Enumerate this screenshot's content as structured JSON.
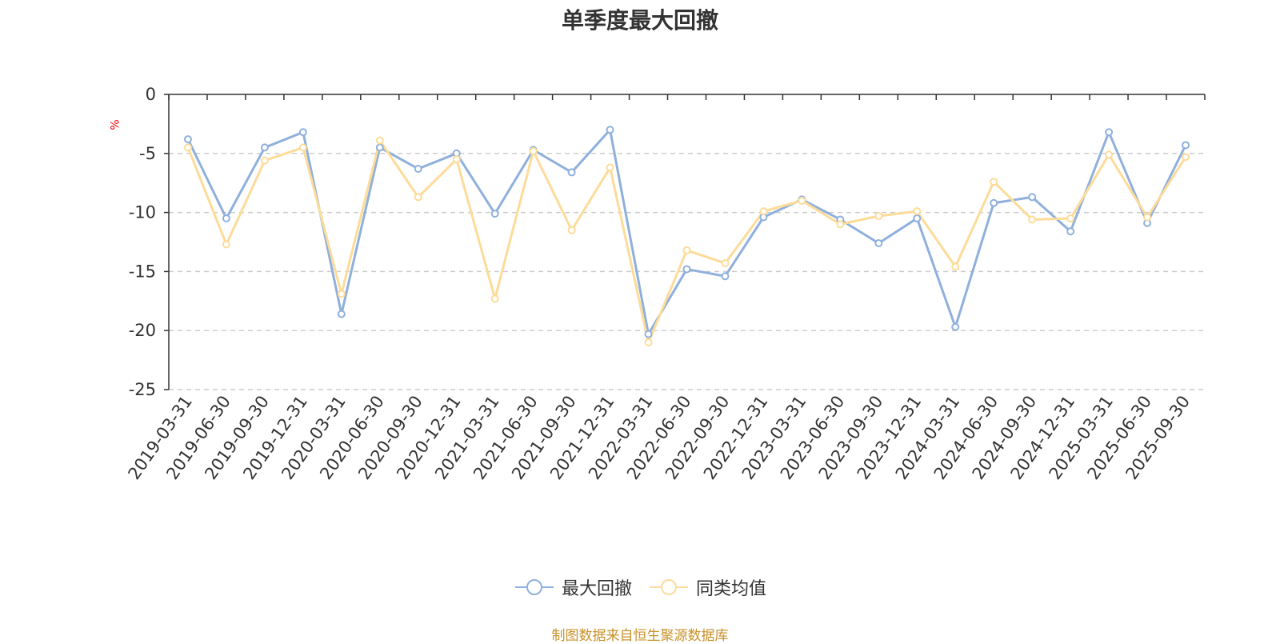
{
  "chart_data": {
    "type": "line",
    "title": "单季度最大回撤",
    "ylabel": "%",
    "ylim": [
      -25,
      0
    ],
    "yticks": [
      0,
      -5,
      -10,
      -15,
      -20,
      -25
    ],
    "grid": true,
    "legend_position": "bottom",
    "categories": [
      "2019-03-31",
      "2019-06-30",
      "2019-09-30",
      "2019-12-31",
      "2020-03-31",
      "2020-06-30",
      "2020-09-30",
      "2020-12-31",
      "2021-03-31",
      "2021-06-30",
      "2021-09-30",
      "2021-12-31",
      "2022-03-31",
      "2022-06-30",
      "2022-09-30",
      "2022-12-31",
      "2023-03-31",
      "2023-06-30",
      "2023-09-30",
      "2023-12-31",
      "2024-03-31",
      "2024-06-30",
      "2024-09-30",
      "2024-12-31",
      "2025-03-31",
      "2025-06-30",
      "2025-09-30"
    ],
    "series": [
      {
        "name": "最大回撤",
        "color": "#8fb0dc",
        "values": [
          -3.8,
          -10.5,
          -4.5,
          -3.2,
          -18.6,
          -4.5,
          -6.3,
          -5.0,
          -10.1,
          -4.7,
          -6.6,
          -3.0,
          -20.3,
          -14.8,
          -15.4,
          -10.4,
          -8.9,
          -10.6,
          -12.6,
          -10.5,
          -19.7,
          -9.2,
          -8.7,
          -11.6,
          -3.2,
          -10.9,
          -4.3
        ]
      },
      {
        "name": "同类均值",
        "color": "#fddb99",
        "values": [
          -4.5,
          -12.7,
          -5.6,
          -4.5,
          -16.9,
          -3.9,
          -8.7,
          -5.5,
          -17.3,
          -4.8,
          -11.5,
          -6.2,
          -21.0,
          -13.2,
          -14.3,
          -9.9,
          -9.0,
          -11.0,
          -10.3,
          -9.9,
          -14.6,
          -7.4,
          -10.6,
          -10.5,
          -5.1,
          -10.4,
          -5.3
        ]
      }
    ]
  },
  "source_note": "制图数据来自恒生聚源数据库"
}
